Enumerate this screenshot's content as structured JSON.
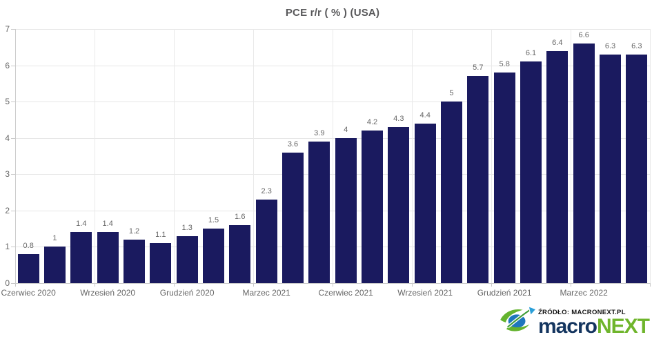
{
  "title": "PCE r/r ( % ) (USA)",
  "chart_data": {
    "type": "bar",
    "title": "PCE r/r ( % ) (USA)",
    "xlabel": "",
    "ylabel": "",
    "ylim": [
      0,
      7
    ],
    "y_ticks": [
      0,
      1,
      2,
      3,
      4,
      5,
      6,
      7
    ],
    "grid": true,
    "legend": "none",
    "x_tick_every": 3,
    "x_tick_labels": [
      "Czerwiec 2020",
      "Wrzesień 2020",
      "Grudzień 2020",
      "Marzec 2021",
      "Czerwiec 2021",
      "Wrzesień 2021",
      "Grudzień 2021",
      "Marzec 2022"
    ],
    "values": [
      0.8,
      1,
      1.4,
      1.4,
      1.2,
      1.1,
      1.3,
      1.5,
      1.6,
      2.3,
      3.6,
      3.9,
      4,
      4.2,
      4.3,
      4.4,
      5,
      5.7,
      5.8,
      6.1,
      6.4,
      6.6,
      6.3,
      6.3
    ],
    "value_labels": [
      "0.8",
      "1",
      "1.4",
      "1.4",
      "1.2",
      "1.1",
      "1.3",
      "1.5",
      "1.6",
      "2.3",
      "3.6",
      "3.9",
      "4",
      "4.2",
      "4.3",
      "4.4",
      "5",
      "5.7",
      "5.8",
      "6.1",
      "6.4",
      "6.6",
      "6.3",
      "6.3"
    ],
    "bar_color": "#1a1a5f",
    "value_label_color": "#666666",
    "axis_label_color": "#666666",
    "grid_color": "#e6e6e6"
  },
  "footer": {
    "source_text": "ŹRÓDŁO: MACRONEXT.PL",
    "logo_macro": "macro",
    "logo_next": "NEXT",
    "logo_macro_color": "#14355f",
    "logo_next_color": "#6fb52c"
  }
}
